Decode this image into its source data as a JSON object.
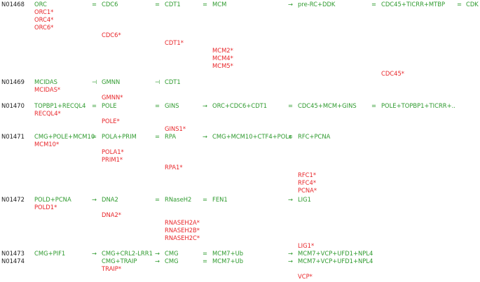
{
  "colors": {
    "id": "#1a1a1a",
    "node": "#2e9a2e",
    "variant": "#e8262a"
  },
  "pathways": [
    {
      "id": "N01468",
      "steps": [
        {
          "label": "ORC",
          "variants": [
            "ORC1*",
            "ORC4*",
            "ORC6*"
          ]
        },
        {
          "rel": "=",
          "label": "CDC6",
          "variants": [
            "CDC6*"
          ]
        },
        {
          "rel": "=",
          "label": "CDT1",
          "variants": [
            "CDT1*"
          ]
        },
        {
          "rel": "=",
          "label": "MCM",
          "variants": [
            "MCM2*",
            "MCM4*",
            "MCM5*"
          ]
        },
        {
          "rel": "→",
          "label": "pre-RC+DDK",
          "variants": []
        },
        {
          "rel": "=",
          "label": "CDC45+TICRR+MTBP",
          "variants": [
            "CDC45*"
          ]
        },
        {
          "rel": "=",
          "label": "CDK",
          "variants": []
        }
      ]
    },
    {
      "id": "N01469",
      "steps": [
        {
          "label": "MCIDAS",
          "variants": [
            "MCIDAS*"
          ]
        },
        {
          "rel": "⊣",
          "label": "GMNN",
          "variants": [
            "GMNN*"
          ]
        },
        {
          "rel": "⊣",
          "label": "CDT1",
          "variants": []
        }
      ]
    },
    {
      "id": "N01470",
      "steps": [
        {
          "label": "TOPBP1+RECQL4",
          "variants": [
            "RECQL4*"
          ]
        },
        {
          "rel": "=",
          "label": "POLE",
          "variants": [
            "POLE*"
          ]
        },
        {
          "rel": "=",
          "label": "GINS",
          "variants": [
            "GINS1*"
          ]
        },
        {
          "rel": "→",
          "label": "ORC+CDC6+CDT1",
          "variants": []
        },
        {
          "rel": "=",
          "label": "CDC45+MCM+GINS",
          "variants": []
        },
        {
          "rel": "=",
          "label": "POLE+TOPBP1+TICRR+..",
          "variants": []
        }
      ]
    },
    {
      "id": "N01471",
      "steps": [
        {
          "label": "CMG+POLE+MCM10",
          "variants": [
            "MCM10*"
          ]
        },
        {
          "rel": "=",
          "label": "POLA+PRIM",
          "variants": [
            "POLA1*",
            "PRIM1*"
          ]
        },
        {
          "rel": "=",
          "label": "RPA",
          "variants": [
            "RPA1*"
          ]
        },
        {
          "rel": "→",
          "label": "CMG+MCM10+CTF4+POLε",
          "variants": []
        },
        {
          "rel": "=",
          "label": "RFC+PCNA",
          "variants": [
            "RFC1*",
            "RFC4*",
            "PCNA*"
          ]
        }
      ]
    },
    {
      "id": "N01472",
      "steps": [
        {
          "label": "POLD+PCNA",
          "variants": [
            "POLD1*"
          ]
        },
        {
          "rel": "→",
          "label": "DNA2",
          "variants": [
            "DNA2*"
          ]
        },
        {
          "rel": "=",
          "label": "RNaseH2",
          "variants": [
            "RNASEH2A*",
            "RNASEH2B*",
            "RNASEH2C*"
          ]
        },
        {
          "rel": "=",
          "label": "FEN1",
          "variants": []
        },
        {
          "rel": "→",
          "label": "LIG1",
          "variants": [
            "LIG1*"
          ]
        }
      ]
    },
    {
      "id": "N01473",
      "steps": [
        {
          "label": "CMG+PIF1",
          "variants": []
        },
        {
          "rel": "→",
          "label": "CMG+CRL2-LRR1",
          "variants": []
        },
        {
          "rel": "→",
          "label": "CMG",
          "variants": []
        },
        {
          "rel": "=",
          "label": "MCM7+Ub",
          "variants": []
        },
        {
          "rel": "→",
          "label": "MCM7+VCP+UFD1+NPL4",
          "variants": []
        }
      ]
    },
    {
      "id": "N01474",
      "steps": [
        {
          "label": "CMG+TRAIP",
          "variants": [
            "TRAIP*"
          ]
        },
        {
          "rel": "→",
          "label": "CMG",
          "variants": []
        },
        {
          "rel": "=",
          "label": "MCM7+Ub",
          "variants": []
        },
        {
          "rel": "→",
          "label": "MCM7+VCP+UFD1+NPL4",
          "variants": [
            "VCP*"
          ]
        }
      ]
    }
  ]
}
